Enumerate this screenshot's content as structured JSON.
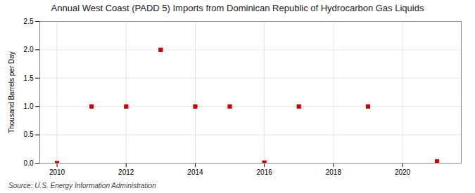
{
  "chart_data": {
    "type": "scatter",
    "title": "Annual West Coast (PADD 5) Imports from Dominican Republic of Hydrocarbon Gas Liquids",
    "ylabel": "Thousand Barrels per Day",
    "source": "Source: U.S. Energy Information Administration",
    "x": [
      2010,
      2011,
      2012,
      2013,
      2014,
      2015,
      2016,
      2017,
      2019,
      2021
    ],
    "values": [
      0.0,
      1.0,
      1.0,
      2.0,
      1.0,
      1.0,
      0.01,
      1.0,
      1.0,
      0.03
    ],
    "color": "#cc0000",
    "marker": "square",
    "xlim": [
      2009.5,
      2021.7
    ],
    "xticks": [
      2010,
      2012,
      2014,
      2016,
      2018,
      2020
    ],
    "ylim": [
      0.0,
      2.5
    ],
    "yticks": [
      {
        "value": 0.0,
        "label": "0.0"
      },
      0.5,
      {
        "value": 1.0,
        "label": "1.0"
      },
      1.5,
      {
        "value": 2.0,
        "label": "2.0"
      },
      2.5
    ],
    "grid": true
  }
}
